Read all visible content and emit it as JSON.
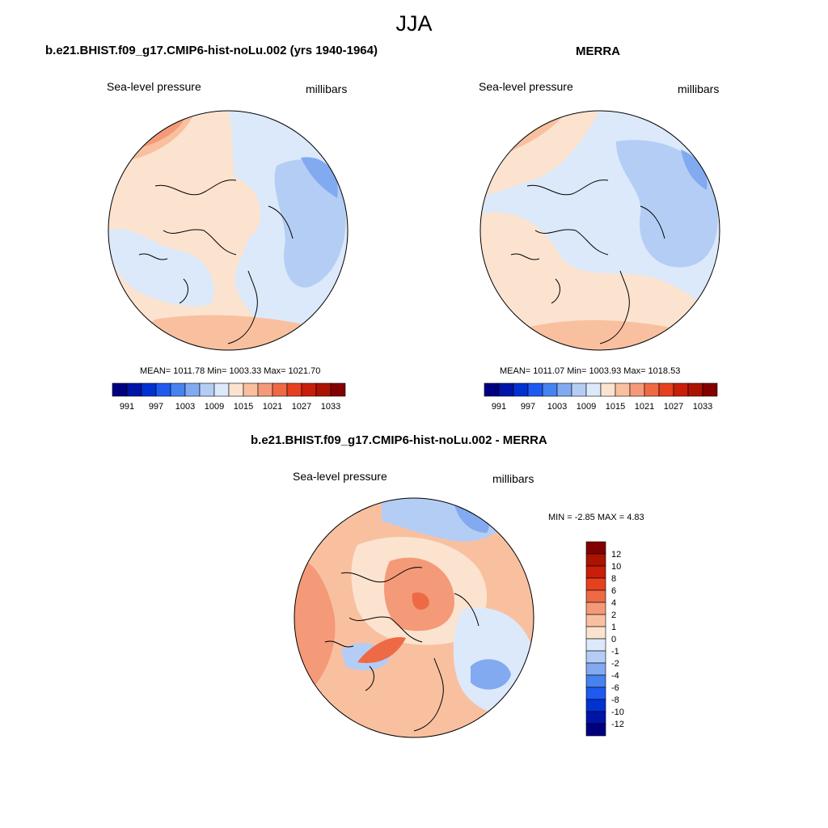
{
  "figure": {
    "title": "JJA"
  },
  "panels": {
    "model": {
      "title": "b.e21.BHIST.f09_g17.CMIP6-hist-noLu.002 (yrs 1940-1964)",
      "left_label": "Sea-level pressure",
      "right_label": "millibars",
      "stats": "MEAN= 1011.78  Min= 1003.33  Max= 1021.70"
    },
    "obs": {
      "title": "MERRA",
      "left_label": "Sea-level pressure",
      "right_label": "millibars",
      "stats": "MEAN= 1011.07  Min= 1003.93  Max= 1018.53"
    },
    "diff": {
      "title": "b.e21.BHIST.f09_g17.CMIP6-hist-noLu.002 - MERRA",
      "left_label": "Sea-level pressure",
      "right_label": "millibars",
      "stats": "MIN =  -2.85 MAX =   4.83"
    }
  },
  "colorbars": {
    "abs": {
      "colors": [
        "#00007f",
        "#0014a8",
        "#0032d2",
        "#1e5af0",
        "#4682f0",
        "#82aaf0",
        "#b4cdf5",
        "#dce9fa",
        "#fbe3d0",
        "#f9c0a0",
        "#f49a78",
        "#ee6a45",
        "#e6401e",
        "#c81e0a",
        "#aa1400",
        "#820000"
      ],
      "tick_labels": [
        "991",
        "997",
        "1003",
        "1009",
        "1015",
        "1021",
        "1027",
        "1033"
      ]
    },
    "diff": {
      "colors": [
        "#00007f",
        "#0014a8",
        "#0032d2",
        "#1e5af0",
        "#4682f0",
        "#82aaf0",
        "#b4cdf5",
        "#dce9fa",
        "#fbe3d0",
        "#f9c0a0",
        "#f49a78",
        "#ee6a45",
        "#e6401e",
        "#c81e0a",
        "#aa1400",
        "#820000"
      ],
      "tick_labels": [
        "12",
        "10",
        "8",
        "6",
        "4",
        "2",
        "1",
        "0",
        "-1",
        "-2",
        "-4",
        "-6",
        "-8",
        "-10",
        "-12"
      ]
    }
  },
  "map_colors": {
    "pale_blue": "#dce9fa",
    "light_blue": "#b4cdf5",
    "mid_blue": "#82aaf0",
    "blue": "#4682f0",
    "pale_red": "#fbe3d0",
    "light_red": "#f9c0a0",
    "mid_red": "#f49a78",
    "red": "#ee6a45"
  }
}
